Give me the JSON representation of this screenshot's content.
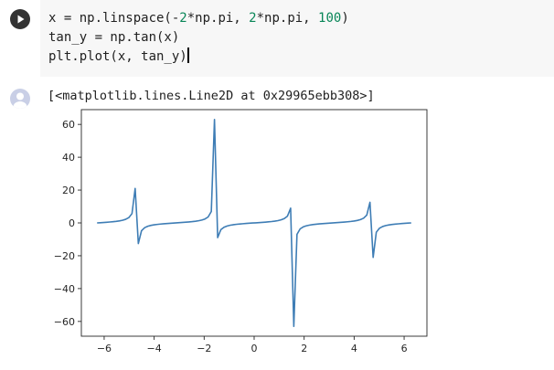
{
  "code_cell": {
    "lines": [
      [
        {
          "t": "x = np.linspace(-",
          "c": ""
        },
        {
          "t": "2",
          "c": "num"
        },
        {
          "t": "*np.pi, ",
          "c": ""
        },
        {
          "t": "2",
          "c": "num"
        },
        {
          "t": "*np.pi, ",
          "c": ""
        },
        {
          "t": "100",
          "c": "num"
        },
        {
          "t": ")",
          "c": ""
        }
      ],
      [
        {
          "t": "tan_y = np.tan(x)",
          "c": ""
        }
      ],
      [
        {
          "t": "plt.plot(x, tan_y)",
          "c": ""
        }
      ]
    ],
    "run_icon": "play-icon"
  },
  "output": {
    "repr_text": "[<matplotlib.lines.Line2D at 0x29965ebb308>]",
    "output_icon": "user-avatar-icon"
  },
  "colors": {
    "line": "#3e7db5",
    "editor_bg": "#f7f7f7"
  },
  "chart_data": {
    "type": "line",
    "title": "",
    "xlabel": "",
    "ylabel": "",
    "xlim": [
      -6.912,
      6.912
    ],
    "ylim": [
      -69,
      69
    ],
    "xticks": [
      -6,
      -4,
      -2,
      0,
      2,
      4,
      6
    ],
    "yticks": [
      -60,
      -40,
      -20,
      0,
      20,
      40,
      60
    ],
    "xtick_labels": [
      "−6",
      "−4",
      "−2",
      "0",
      "2",
      "4",
      "6"
    ],
    "ytick_labels": [
      "−60",
      "−40",
      "−20",
      "0",
      "20",
      "40",
      "60"
    ],
    "grid": false,
    "series": [
      {
        "x_range": [
          -6.283185,
          6.283185
        ],
        "n_points": 100,
        "function": "tan"
      }
    ]
  }
}
